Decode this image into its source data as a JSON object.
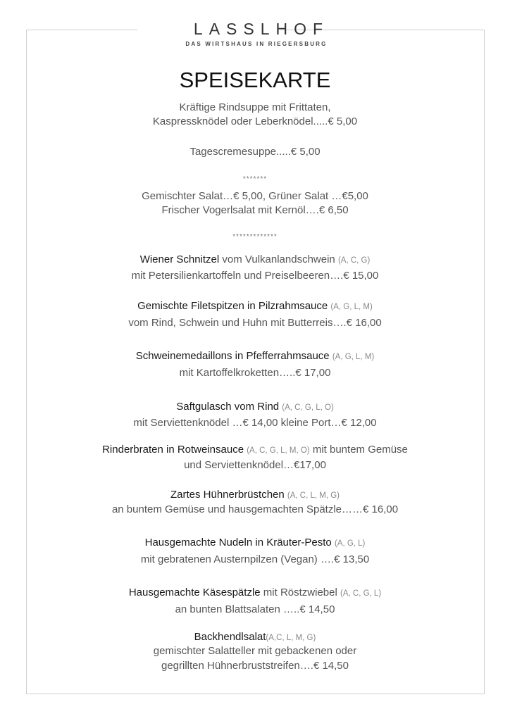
{
  "logo": {
    "name": "LASSLHOF",
    "tagline": "DAS WIRTSHAUS IN RIEGERSBURG"
  },
  "title": "SPEISEKARTE",
  "starters": {
    "soup_line1": "Kräftige Rindsuppe mit Frittaten,",
    "soup_line2": "Kaspressknödel oder Leberknödel.....€ 5,00",
    "cream_soup": "Tagescremesuppe.....€ 5,00",
    "divider1": "*******",
    "salad_line1": "Gemischter Salat…€ 5,00, Grüner Salat …€5,00",
    "salad_line2": "Frischer Vogerlsalat mit Kernöl….€ 6,50",
    "divider2": "*************"
  },
  "mains": [
    {
      "name": "Wiener Schnitzel",
      "extra": " vom Vulkanlandschwein ",
      "allergens": "(A, C, G)",
      "after": "",
      "line2": "mit Petersilienkartoffeln und Preiselbeeren….€ 15,00"
    },
    {
      "name": "Gemischte Filetspitzen in Pilzrahmsauce",
      "extra": " ",
      "allergens": "(A, G, L, M)",
      "after": "",
      "line2": "vom Rind, Schwein und Huhn mit Butterreis….€ 16,00"
    },
    {
      "name": "Schweinemedaillons in Pfefferrahmsauce",
      "extra": " ",
      "allergens": "(A, G, L, M)",
      "after": "",
      "line2": "mit Kartoffelkroketten…..€ 17,00"
    },
    {
      "name": "Saftgulasch vom Rind",
      "extra": " ",
      "allergens": "(A, C, G, L, O)",
      "after": "",
      "line2": "mit Serviettenknödel …€ 14,00  kleine Port…€ 12,00"
    },
    {
      "name": "Rinderbraten in Rotweinsauce",
      "extra": " ",
      "allergens": "(A, C, G, L, M, O)",
      "after": " mit buntem Gemüse",
      "line2": "und Serviettenknödel…€17,00"
    },
    {
      "name": "Zartes Hühnerbrüstchen",
      "extra": " ",
      "allergens": "(A, C, L, M, G)",
      "after": "",
      "line2": "an buntem Gemüse und hausgemachten Spätzle……€ 16,00"
    },
    {
      "name": "Hausgemachte Nudeln in Kräuter-Pesto",
      "extra": " ",
      "allergens": "(A, G, L)",
      "after": "",
      "line2": "mit gebratenen Austernpilzen (Vegan) ….€ 13,50"
    },
    {
      "name": "Hausgemachte Käsespätzle",
      "extra": " mit Röstzwiebel ",
      "allergens": "(A, C, G, L)",
      "after": "",
      "line2": "an bunten Blattsalaten …..€ 14,50"
    },
    {
      "name": "Backhendlsalat",
      "extra": "",
      "allergens": "(A,C, L, M, G)",
      "after": "",
      "line2": "gemischter Salatteller mit gebackenen oder",
      "line3": "gegrillten Hühnerbruststreifen….€ 14,50"
    }
  ]
}
